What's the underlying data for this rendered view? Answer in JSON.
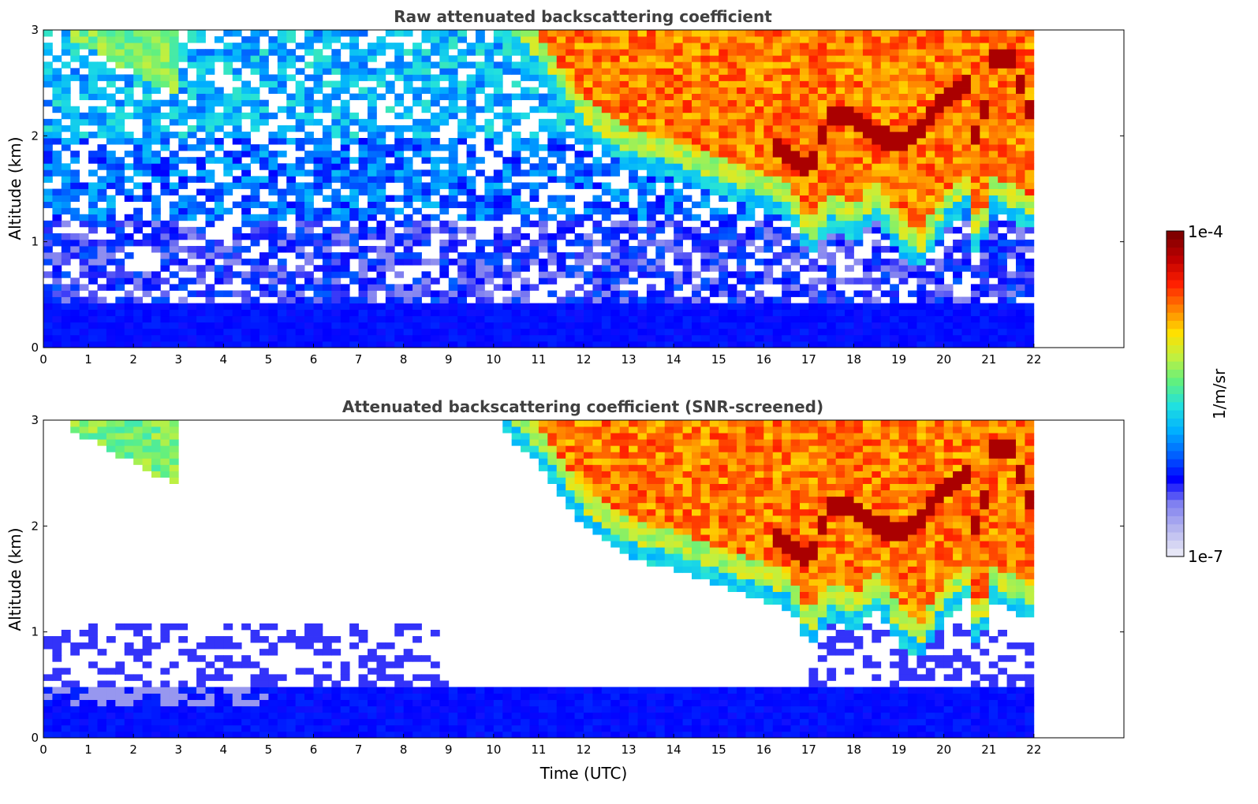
{
  "chart_data": [
    {
      "type": "heatmap",
      "title": "Raw attenuated backscattering coefficient",
      "xlabel": "",
      "ylabel": "Altitude (km)",
      "xlim": [
        0,
        24
      ],
      "ylim": [
        0,
        3
      ],
      "xticks": [
        "0",
        "1",
        "2",
        "3",
        "4",
        "5",
        "6",
        "7",
        "8",
        "9",
        "10",
        "11",
        "12",
        "13",
        "14",
        "15",
        "16",
        "17",
        "18",
        "19",
        "20",
        "21",
        "22"
      ],
      "yticks": [
        "0",
        "1",
        "2",
        "3"
      ],
      "data_extent_hours": [
        0,
        22
      ],
      "features": [
        {
          "name": "boundary layer",
          "time": [
            0,
            22
          ],
          "altitude_km": [
            0,
            0.4
          ],
          "level": "1e-6"
        },
        {
          "name": "noise",
          "time": [
            0,
            22
          ],
          "altitude_km": [
            0.4,
            3.0
          ],
          "level": "noisy 1e-7 to 1e-5"
        },
        {
          "name": "early cloud",
          "time": [
            0.6,
            3.0
          ],
          "altitude_km": [
            2.4,
            3.0
          ],
          "level": "1e-5"
        },
        {
          "name": "descending cloud layer",
          "time": [
            10.2,
            22
          ],
          "altitude_km": [
            0.8,
            3.0
          ],
          "level": "up to 1e-4"
        }
      ]
    },
    {
      "type": "heatmap",
      "title": "Attenuated backscattering coefficient (SNR-screened)",
      "xlabel": "Time (UTC)",
      "ylabel": "Altitude (km)",
      "xlim": [
        0,
        24
      ],
      "ylim": [
        0,
        3
      ],
      "xticks": [
        "0",
        "1",
        "2",
        "3",
        "4",
        "5",
        "6",
        "7",
        "8",
        "9",
        "10",
        "11",
        "12",
        "13",
        "14",
        "15",
        "16",
        "17",
        "18",
        "19",
        "20",
        "21",
        "22"
      ],
      "yticks": [
        "0",
        "1",
        "2",
        "3"
      ],
      "data_extent_hours": [
        0,
        22
      ],
      "features": [
        {
          "name": "boundary layer",
          "time": [
            0,
            22
          ],
          "altitude_km": [
            0,
            0.45
          ],
          "level": "1e-6"
        },
        {
          "name": "early cloud",
          "time": [
            0.6,
            3.0
          ],
          "altitude_km": [
            2.4,
            3.0
          ],
          "level": "1e-5"
        },
        {
          "name": "descending cloud layer",
          "time": [
            10.2,
            22
          ],
          "altitude_km": [
            0.8,
            3.0
          ],
          "level": "up to 1e-4"
        }
      ]
    }
  ],
  "colorbar": {
    "label": "1/m/sr",
    "max_label": "1e-4",
    "min_label": "1e-7",
    "scale": "log",
    "colormap": "jet",
    "colors": [
      "#e6e6f6",
      "#b4b4ee",
      "#8080f0",
      "#0000ff",
      "#0060ff",
      "#00b0ff",
      "#20e0e0",
      "#60f080",
      "#c0f040",
      "#ffe000",
      "#ff8000",
      "#ff2000",
      "#c00000",
      "#800000"
    ]
  }
}
